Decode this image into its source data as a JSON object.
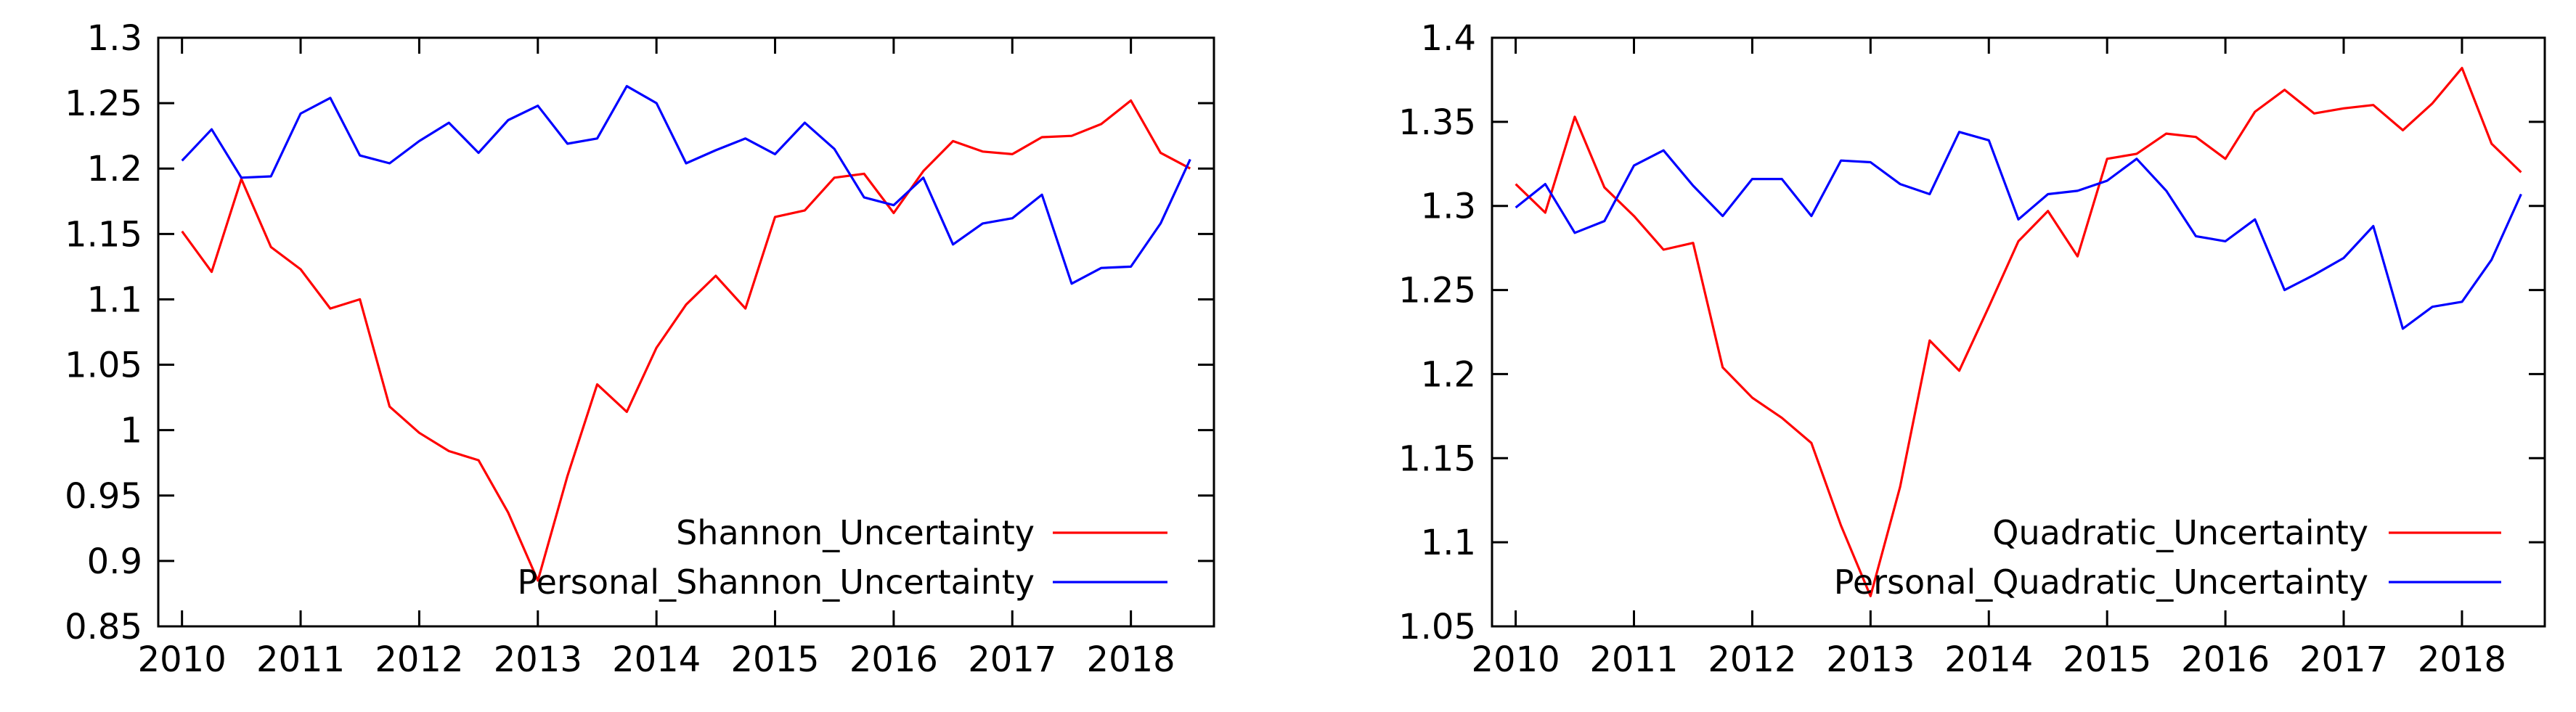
{
  "chart_data": [
    {
      "type": "line",
      "title": "",
      "xlabel": "",
      "ylabel": "",
      "xlim": [
        2009.8,
        2018.7
      ],
      "ylim": [
        0.85,
        1.3
      ],
      "xticks": [
        2010,
        2011,
        2012,
        2013,
        2014,
        2015,
        2016,
        2017,
        2018
      ],
      "xtick_labels": [
        "2010",
        "2011",
        "2012",
        "2013",
        "2014",
        "2015",
        "2016",
        "2017",
        "2018"
      ],
      "yticks": [
        0.85,
        0.9,
        0.95,
        1.0,
        1.05,
        1.1,
        1.15,
        1.2,
        1.25,
        1.3
      ],
      "ytick_labels": [
        "0.85",
        "0.9",
        "0.95",
        "1",
        "1.05",
        "1.1",
        "1.15",
        "1.2",
        "1.25",
        "1.3"
      ],
      "legend_position": "bottom-right",
      "x": [
        2010.0,
        2010.25,
        2010.5,
        2010.75,
        2011.0,
        2011.25,
        2011.5,
        2011.75,
        2012.0,
        2012.25,
        2012.5,
        2012.75,
        2013.0,
        2013.25,
        2013.5,
        2013.75,
        2014.0,
        2014.25,
        2014.5,
        2014.75,
        2015.0,
        2015.25,
        2015.5,
        2015.75,
        2016.0,
        2016.25,
        2016.5,
        2016.75,
        2017.0,
        2017.25,
        2017.5,
        2017.75,
        2018.0,
        2018.25,
        2018.5
      ],
      "series": [
        {
          "name": "Shannon_Uncertainty",
          "color": "#ff0000",
          "values": [
            1.152,
            1.121,
            1.192,
            1.14,
            1.123,
            1.093,
            1.1,
            1.018,
            0.998,
            0.984,
            0.977,
            0.937,
            0.885,
            0.965,
            1.035,
            1.014,
            1.063,
            1.096,
            1.118,
            1.093,
            1.163,
            1.168,
            1.193,
            1.196,
            1.166,
            1.198,
            1.221,
            1.213,
            1.211,
            1.224,
            1.225,
            1.234,
            1.252,
            1.212,
            1.2
          ]
        },
        {
          "name": "Personal_Shannon_Uncertainty",
          "color": "#0000ff",
          "values": [
            1.206,
            1.23,
            1.193,
            1.194,
            1.242,
            1.254,
            1.21,
            1.204,
            1.221,
            1.235,
            1.212,
            1.237,
            1.248,
            1.219,
            1.223,
            1.263,
            1.25,
            1.204,
            1.214,
            1.223,
            1.211,
            1.235,
            1.215,
            1.178,
            1.172,
            1.193,
            1.142,
            1.158,
            1.162,
            1.18,
            1.112,
            1.124,
            1.125,
            1.158,
            1.207
          ]
        }
      ]
    },
    {
      "type": "line",
      "title": "",
      "xlabel": "",
      "ylabel": "",
      "xlim": [
        2009.8,
        2018.7
      ],
      "ylim": [
        1.05,
        1.4
      ],
      "xticks": [
        2010,
        2011,
        2012,
        2013,
        2014,
        2015,
        2016,
        2017,
        2018
      ],
      "xtick_labels": [
        "2010",
        "2011",
        "2012",
        "2013",
        "2014",
        "2015",
        "2016",
        "2017",
        "2018"
      ],
      "yticks": [
        1.05,
        1.1,
        1.15,
        1.2,
        1.25,
        1.3,
        1.35,
        1.4
      ],
      "ytick_labels": [
        "1.05",
        "1.1",
        "1.15",
        "1.2",
        "1.25",
        "1.3",
        "1.35",
        "1.4"
      ],
      "legend_position": "bottom-right",
      "x": [
        2010.0,
        2010.25,
        2010.5,
        2010.75,
        2011.0,
        2011.25,
        2011.5,
        2011.75,
        2012.0,
        2012.25,
        2012.5,
        2012.75,
        2013.0,
        2013.25,
        2013.5,
        2013.75,
        2014.0,
        2014.25,
        2014.5,
        2014.75,
        2015.0,
        2015.25,
        2015.5,
        2015.75,
        2016.0,
        2016.25,
        2016.5,
        2016.75,
        2017.0,
        2017.25,
        2017.5,
        2017.75,
        2018.0,
        2018.25,
        2018.5
      ],
      "series": [
        {
          "name": "Quadratic_Uncertainty",
          "color": "#ff0000",
          "values": [
            1.313,
            1.296,
            1.353,
            1.311,
            1.294,
            1.274,
            1.278,
            1.204,
            1.186,
            1.174,
            1.159,
            1.11,
            1.068,
            1.133,
            1.22,
            1.202,
            1.24,
            1.279,
            1.297,
            1.27,
            1.328,
            1.331,
            1.343,
            1.341,
            1.328,
            1.356,
            1.369,
            1.355,
            1.358,
            1.36,
            1.345,
            1.361,
            1.382,
            1.337,
            1.32
          ]
        },
        {
          "name": "Personal_Quadratic_Uncertainty",
          "color": "#0000ff",
          "values": [
            1.299,
            1.313,
            1.284,
            1.291,
            1.324,
            1.333,
            1.312,
            1.294,
            1.316,
            1.316,
            1.294,
            1.327,
            1.326,
            1.313,
            1.307,
            1.344,
            1.339,
            1.292,
            1.307,
            1.309,
            1.315,
            1.328,
            1.309,
            1.282,
            1.279,
            1.292,
            1.25,
            1.259,
            1.269,
            1.288,
            1.227,
            1.24,
            1.243,
            1.268,
            1.307
          ]
        }
      ]
    }
  ]
}
